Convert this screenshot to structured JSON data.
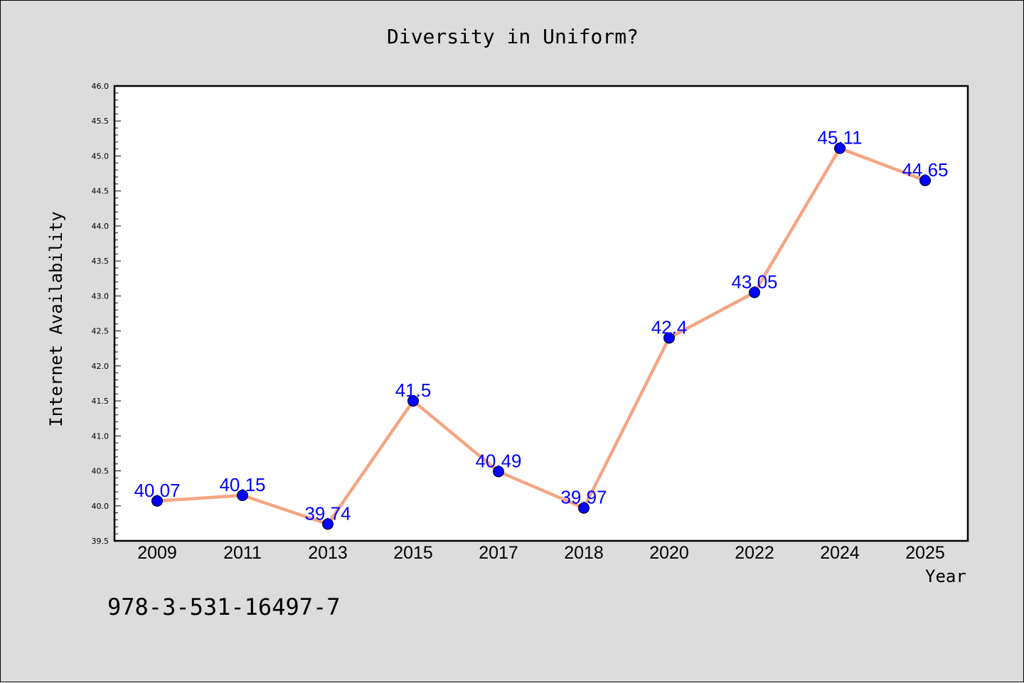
{
  "chart_data": {
    "type": "line",
    "title": "Diversity in Uniform?",
    "xlabel": "Year",
    "ylabel": "Internet Availability",
    "categories": [
      "2009",
      "2011",
      "2013",
      "2015",
      "2017",
      "2018",
      "2020",
      "2022",
      "2024",
      "2025"
    ],
    "series": [
      {
        "values": [
          40.07,
          40.15,
          39.74,
          41.5,
          40.49,
          39.97,
          42.4,
          43.05,
          45.11,
          44.65
        ],
        "value_labels": [
          "40.07",
          "40.15",
          "39.74",
          "41.5",
          "40.49",
          "39.97",
          "42.4",
          "43.05",
          "45.11",
          "44.65"
        ],
        "line_color": "#f4a582",
        "marker_color": "#0000ff"
      }
    ],
    "ylim": [
      39.5,
      46.0
    ],
    "yticks": [
      "39.5",
      "40.0",
      "40.5",
      "41.0",
      "41.5",
      "42.0",
      "42.5",
      "43.0",
      "43.5",
      "44.0",
      "44.5",
      "45.0",
      "45.5",
      "46.0"
    ],
    "grid": false,
    "legend": "none"
  },
  "footer": {
    "isbn": "978-3-531-16497-7"
  }
}
